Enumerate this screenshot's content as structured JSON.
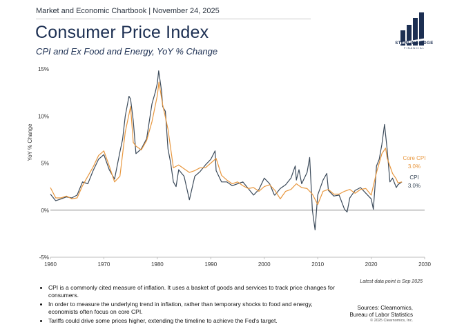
{
  "header": {
    "report_line": "Market and Economic Chartbook | November 24, 2025",
    "title": "Consumer Price Index",
    "subtitle": "CPI and Ex Food and Energy, YoY % Change"
  },
  "logo": {
    "name": "STERLING EDGE",
    "sub": "FINANCIAL"
  },
  "colors": {
    "cpi": "#3b4a5a",
    "core": "#e8973e",
    "zero_line": "#8a8a8a",
    "axis": "#bdbdbd",
    "brand": "#1c2f52"
  },
  "chart_data": {
    "type": "line",
    "title": "Consumer Price Index",
    "xlabel": "",
    "ylabel": "YoY % Change",
    "xlim": [
      1960,
      2030
    ],
    "ylim": [
      -5,
      15
    ],
    "x_ticks": [
      1960,
      1970,
      1980,
      1990,
      2000,
      2010,
      2020,
      2030
    ],
    "y_ticks": [
      15,
      10,
      5,
      0,
      -5
    ],
    "y_tick_labels": [
      "15%",
      "10%",
      "5%",
      "0%",
      "-5%"
    ],
    "series": [
      {
        "name": "CPI",
        "end_label": "CPI",
        "end_value_label": "3.0%",
        "points": [
          [
            1960,
            1.7
          ],
          [
            1961,
            1.0
          ],
          [
            1962,
            1.2
          ],
          [
            1963,
            1.4
          ],
          [
            1964,
            1.3
          ],
          [
            1965,
            1.6
          ],
          [
            1966,
            3.0
          ],
          [
            1967,
            2.8
          ],
          [
            1968,
            4.2
          ],
          [
            1969,
            5.4
          ],
          [
            1970,
            5.9
          ],
          [
            1971,
            4.3
          ],
          [
            1972,
            3.3
          ],
          [
            1973,
            6.2
          ],
          [
            1973.5,
            7.5
          ],
          [
            1974,
            10.0
          ],
          [
            1974.7,
            12.1
          ],
          [
            1975,
            11.8
          ],
          [
            1975.5,
            9.5
          ],
          [
            1976,
            6.0
          ],
          [
            1977,
            6.5
          ],
          [
            1978,
            7.6
          ],
          [
            1979,
            11.3
          ],
          [
            1979.6,
            12.5
          ],
          [
            1980,
            13.5
          ],
          [
            1980.25,
            14.8
          ],
          [
            1980.8,
            12.6
          ],
          [
            1981,
            11.0
          ],
          [
            1981.5,
            10.5
          ],
          [
            1982,
            6.5
          ],
          [
            1982.5,
            5.0
          ],
          [
            1983,
            3.0
          ],
          [
            1983.5,
            2.5
          ],
          [
            1984,
            4.3
          ],
          [
            1985,
            3.6
          ],
          [
            1986,
            1.1
          ],
          [
            1987,
            3.6
          ],
          [
            1988,
            4.1
          ],
          [
            1989,
            4.8
          ],
          [
            1990,
            5.4
          ],
          [
            1990.8,
            6.3
          ],
          [
            1991,
            4.2
          ],
          [
            1992,
            3.0
          ],
          [
            1993,
            3.0
          ],
          [
            1994,
            2.6
          ],
          [
            1995,
            2.8
          ],
          [
            1996,
            3.0
          ],
          [
            1997,
            2.3
          ],
          [
            1998,
            1.6
          ],
          [
            1999,
            2.2
          ],
          [
            2000,
            3.4
          ],
          [
            2001,
            2.8
          ],
          [
            2001.9,
            1.6
          ],
          [
            2002,
            1.6
          ],
          [
            2003,
            2.3
          ],
          [
            2004,
            2.7
          ],
          [
            2005,
            3.4
          ],
          [
            2005.8,
            4.7
          ],
          [
            2006,
            3.2
          ],
          [
            2006.5,
            4.3
          ],
          [
            2007,
            2.8
          ],
          [
            2008,
            4.0
          ],
          [
            2008.5,
            5.6
          ],
          [
            2009,
            0.0
          ],
          [
            2009.5,
            -2.1
          ],
          [
            2010,
            1.6
          ],
          [
            2011,
            3.2
          ],
          [
            2011.7,
            3.9
          ],
          [
            2012,
            2.1
          ],
          [
            2013,
            1.5
          ],
          [
            2014,
            1.6
          ],
          [
            2015,
            0.1
          ],
          [
            2015.5,
            -0.2
          ],
          [
            2016,
            1.3
          ],
          [
            2017,
            2.1
          ],
          [
            2018,
            2.4
          ],
          [
            2019,
            1.8
          ],
          [
            2020,
            1.2
          ],
          [
            2020.4,
            0.1
          ],
          [
            2021,
            4.7
          ],
          [
            2021.5,
            5.4
          ],
          [
            2022,
            7.0
          ],
          [
            2022.5,
            9.1
          ],
          [
            2023,
            6.4
          ],
          [
            2023.5,
            3.0
          ],
          [
            2024,
            3.4
          ],
          [
            2024.7,
            2.4
          ],
          [
            2025,
            2.7
          ],
          [
            2025.75,
            3.0
          ]
        ]
      },
      {
        "name": "Core CPI",
        "end_label": "Core CPI",
        "end_value_label": "3.0%",
        "points": [
          [
            1960,
            2.4
          ],
          [
            1961,
            1.3
          ],
          [
            1962,
            1.3
          ],
          [
            1963,
            1.5
          ],
          [
            1964,
            1.2
          ],
          [
            1965,
            1.3
          ],
          [
            1966,
            2.6
          ],
          [
            1967,
            3.6
          ],
          [
            1968,
            4.6
          ],
          [
            1969,
            5.8
          ],
          [
            1970,
            6.3
          ],
          [
            1971,
            4.7
          ],
          [
            1972,
            3.0
          ],
          [
            1973,
            3.6
          ],
          [
            1974,
            8.3
          ],
          [
            1975,
            11.0
          ],
          [
            1975.5,
            7.2
          ],
          [
            1976,
            6.8
          ],
          [
            1977,
            6.4
          ],
          [
            1978,
            7.4
          ],
          [
            1979,
            9.4
          ],
          [
            1980,
            12.2
          ],
          [
            1980.3,
            13.6
          ],
          [
            1981,
            11.2
          ],
          [
            1982,
            8.6
          ],
          [
            1983,
            4.5
          ],
          [
            1984,
            4.8
          ],
          [
            1985,
            4.4
          ],
          [
            1986,
            4.0
          ],
          [
            1987,
            4.2
          ],
          [
            1988,
            4.5
          ],
          [
            1989,
            4.5
          ],
          [
            1990,
            5.0
          ],
          [
            1991,
            5.5
          ],
          [
            1992,
            3.7
          ],
          [
            1993,
            3.2
          ],
          [
            1994,
            2.8
          ],
          [
            1995,
            3.0
          ],
          [
            1996,
            2.6
          ],
          [
            1997,
            2.3
          ],
          [
            1998,
            2.4
          ],
          [
            1999,
            2.0
          ],
          [
            2000,
            2.5
          ],
          [
            2001,
            2.7
          ],
          [
            2002,
            2.1
          ],
          [
            2003,
            1.2
          ],
          [
            2004,
            2.0
          ],
          [
            2005,
            2.2
          ],
          [
            2006,
            2.8
          ],
          [
            2007,
            2.4
          ],
          [
            2008,
            2.3
          ],
          [
            2009,
            1.7
          ],
          [
            2010,
            0.6
          ],
          [
            2011,
            2.0
          ],
          [
            2012,
            2.2
          ],
          [
            2013,
            1.7
          ],
          [
            2014,
            1.7
          ],
          [
            2015,
            2.0
          ],
          [
            2016,
            2.2
          ],
          [
            2017,
            1.8
          ],
          [
            2018,
            2.2
          ],
          [
            2019,
            2.3
          ],
          [
            2020,
            1.6
          ],
          [
            2021,
            4.0
          ],
          [
            2022,
            6.0
          ],
          [
            2022.7,
            6.6
          ],
          [
            2023,
            5.5
          ],
          [
            2024,
            3.9
          ],
          [
            2024.7,
            3.3
          ],
          [
            2025,
            2.9
          ],
          [
            2025.75,
            3.0
          ]
        ]
      }
    ]
  },
  "notes": {
    "latest": "Latest data point is Sep 2025"
  },
  "bullets": [
    "CPI is a commonly cited measure of inflation. It uses a basket of goods and services to track price changes for consumers.",
    "In order to measure the underlying trend in inflation, rather than temporary shocks to food and energy, economists often focus on core CPI.",
    "Tariffs could drive some prices higher, extending the timeline to achieve the Fed's target."
  ],
  "sources": {
    "line1": "Sources: Clearnomics,",
    "line2": "Bureau of Labor Statistics",
    "copyright": "© 2025 Clearnomics, Inc."
  }
}
